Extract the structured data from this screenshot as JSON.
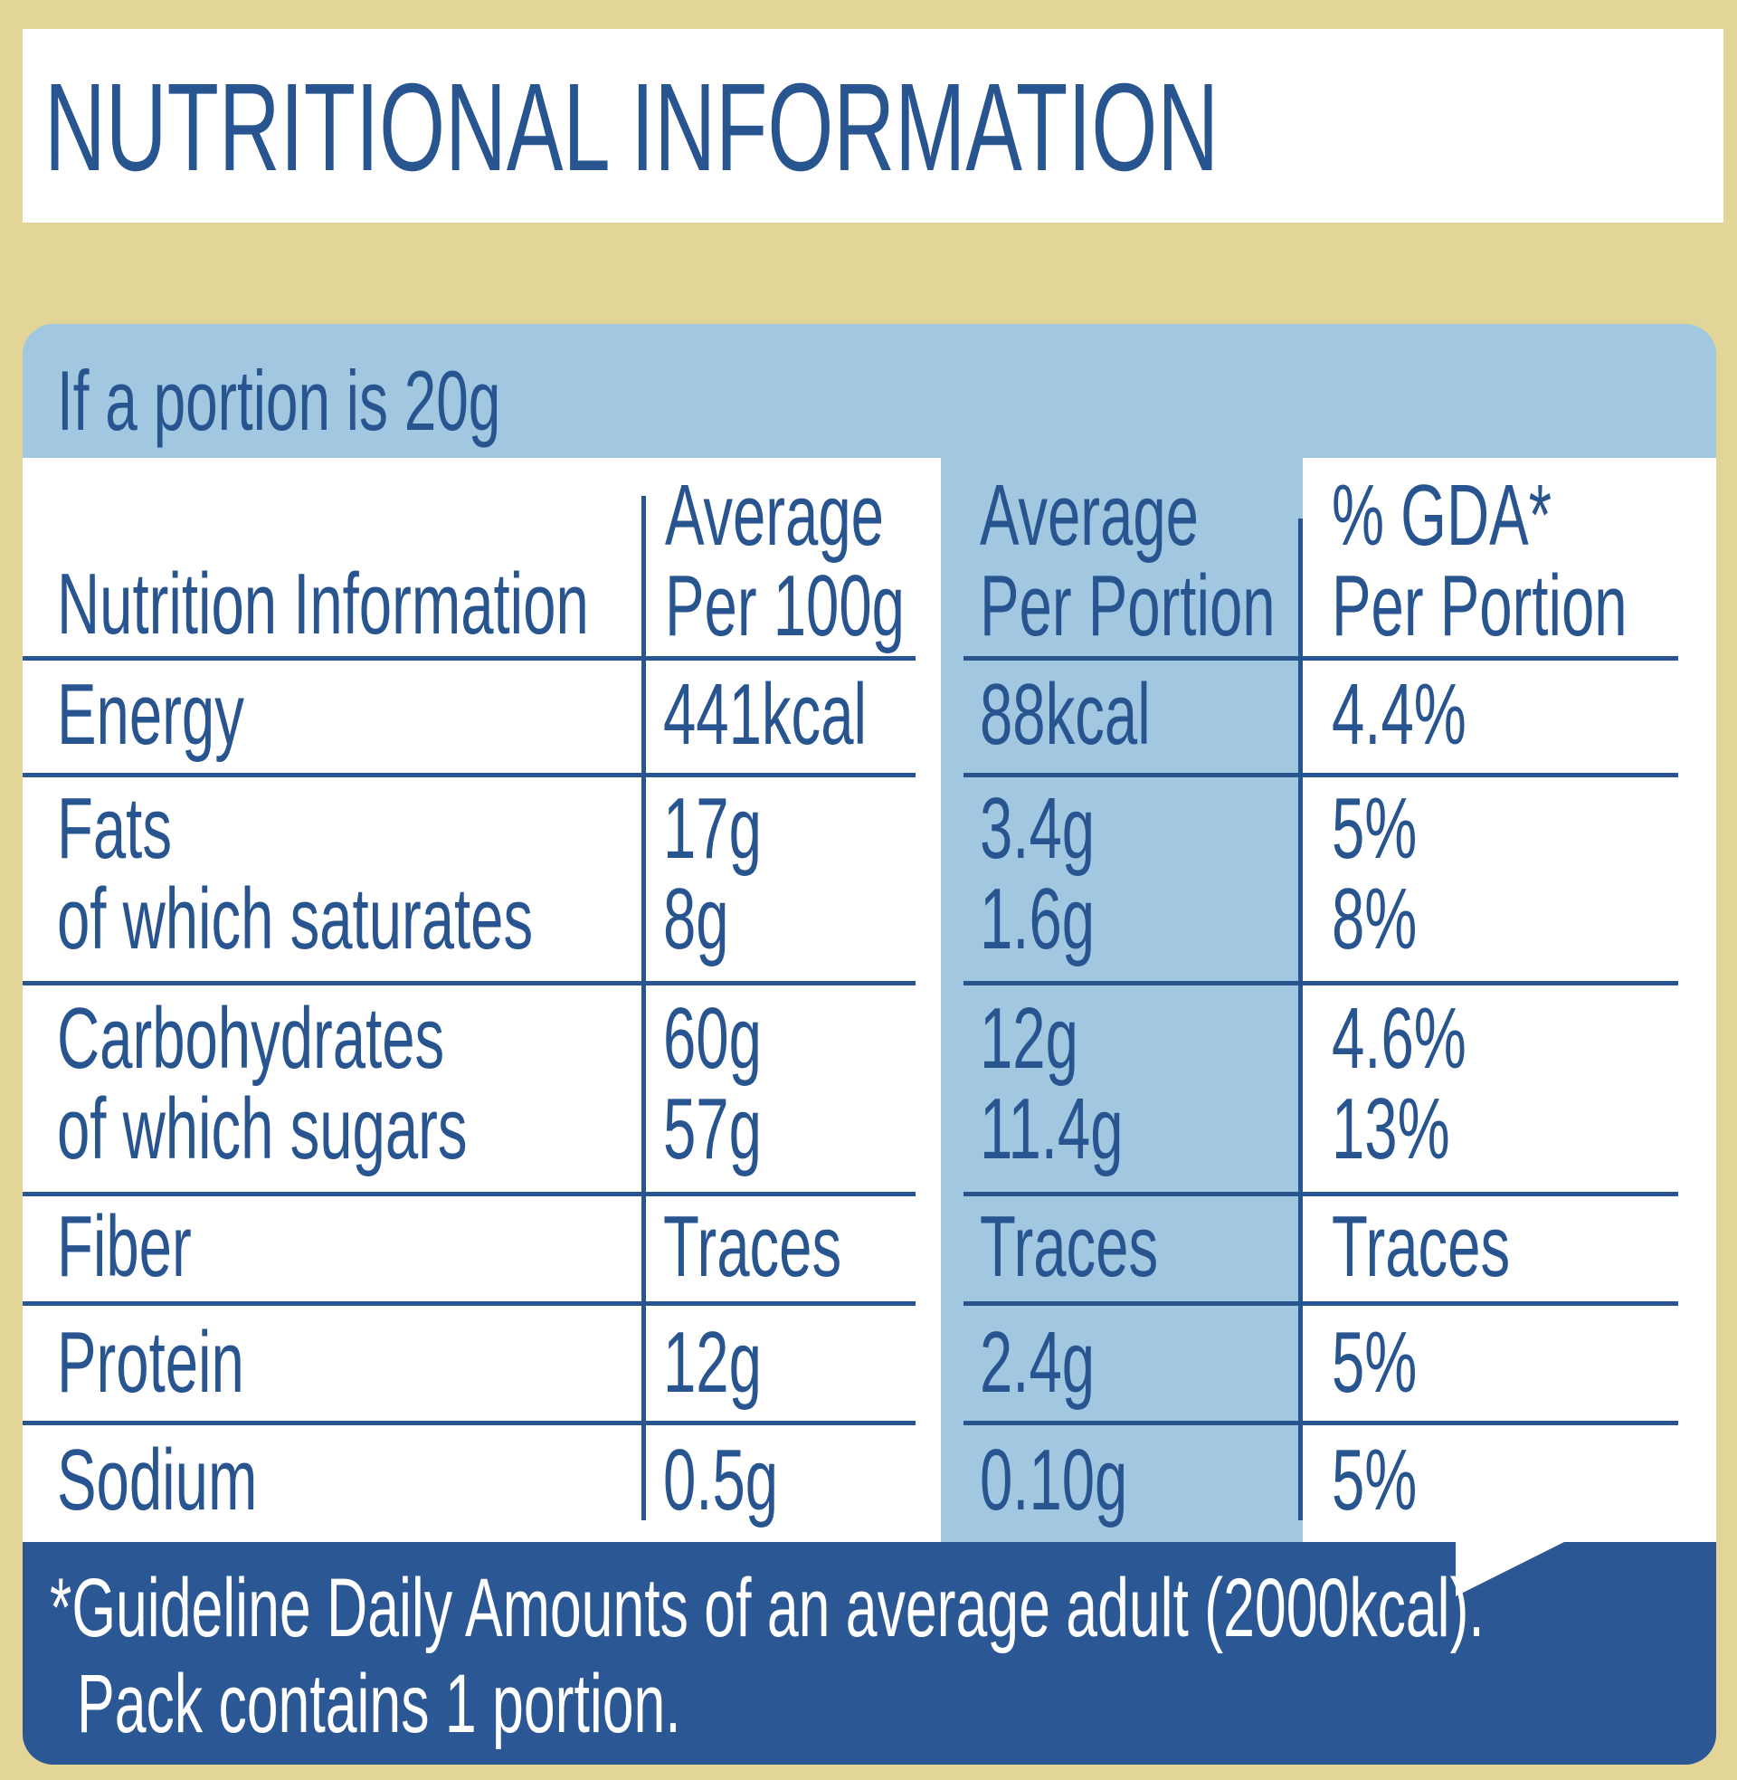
{
  "title": "NUTRITIONAL INFORMATION",
  "portion_heading": "If a portion is 20g",
  "columns": {
    "nutrient": "Nutrition Information",
    "per100": [
      "Average",
      "Per 100g"
    ],
    "per_portion": [
      "Average",
      "Per Portion"
    ],
    "gda": [
      "% GDA*",
      "Per Portion"
    ]
  },
  "rows": [
    {
      "names": [
        "Energy"
      ],
      "per100": [
        "441kcal"
      ],
      "portion": [
        "88kcal"
      ],
      "gda": [
        "4.4%"
      ]
    },
    {
      "names": [
        "Fats",
        "of which saturates"
      ],
      "per100": [
        "17g",
        "8g"
      ],
      "portion": [
        "3.4g",
        "1.6g"
      ],
      "gda": [
        "5%",
        "8%"
      ]
    },
    {
      "names": [
        "Carbohydrates",
        "of which sugars"
      ],
      "per100": [
        "60g",
        "57g"
      ],
      "portion": [
        "12g",
        "11.4g"
      ],
      "gda": [
        "4.6%",
        "13%"
      ]
    },
    {
      "names": [
        "Fiber"
      ],
      "per100": [
        "Traces"
      ],
      "portion": [
        "Traces"
      ],
      "gda": [
        "Traces"
      ]
    },
    {
      "names": [
        "Protein"
      ],
      "per100": [
        "12g"
      ],
      "portion": [
        "2.4g"
      ],
      "gda": [
        "5%"
      ]
    },
    {
      "names": [
        "Sodium"
      ],
      "per100": [
        "0.5g"
      ],
      "portion": [
        "0.10g"
      ],
      "gda": [
        "5%"
      ]
    }
  ],
  "footnote": {
    "line1": "*Guideline Daily Amounts of an average adult (2000kcal).",
    "line2": "Pack contains 1 portion."
  },
  "colors": {
    "background": "#e3d497",
    "text_blue": "#28548f",
    "panel_light_blue": "#a1c8e0",
    "footer_blue": "#2b5794"
  }
}
